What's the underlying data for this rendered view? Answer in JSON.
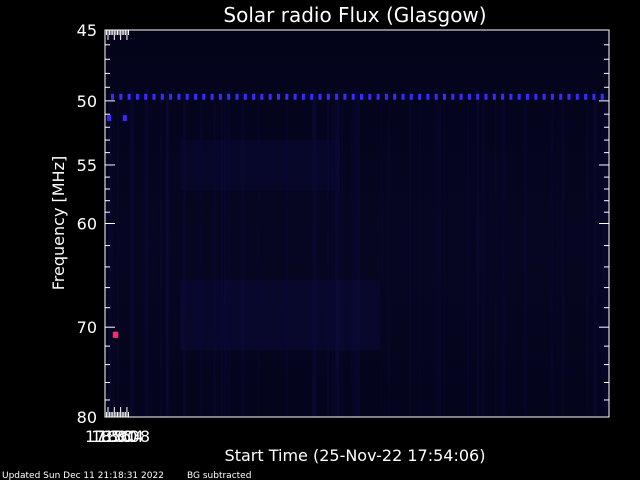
{
  "chart_data": {
    "type": "heatmap",
    "title": "Solar radio Flux (Glasgow)",
    "xlabel": "Start Time (25-Nov-22 17:54:06)",
    "ylabel": "Frequency [MHz]",
    "x_ticks": [
      "17:56",
      "18:00",
      "18:04",
      "18:08"
    ],
    "y_ticks": [
      "45",
      "50",
      "55",
      "60",
      "70",
      "80"
    ],
    "ylim": [
      45,
      80
    ],
    "y_scale": "log",
    "background_color": "#05051a",
    "interference_band": {
      "frequency_mhz": 49.7,
      "color": "#3a2aff"
    },
    "hot_spots": [
      {
        "time": "18:00:20",
        "frequency_mhz": 70.8,
        "color": "#ff2a6a"
      },
      {
        "time": "18:01:15",
        "frequency_mhz": 70.8,
        "color": "#ff2a6a"
      },
      {
        "time": "17:56:40",
        "frequency_mhz": 51.3,
        "color": "#3a2aff"
      },
      {
        "time": "18:06:40",
        "frequency_mhz": 51.3,
        "color": "#3a2aff"
      }
    ]
  },
  "footer": {
    "updated": "Updated Sun Dec 11 21:18:31 2022",
    "note": "BG subtracted"
  }
}
